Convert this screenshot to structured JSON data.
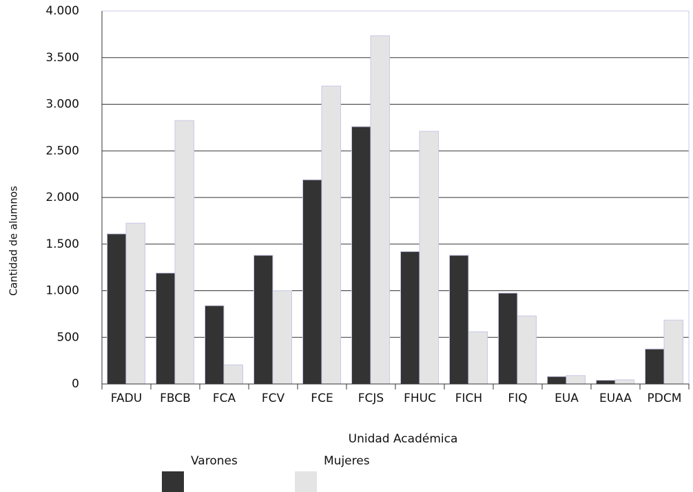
{
  "chart_data": {
    "type": "bar",
    "x_label": "Unidad Académica",
    "y_label": "Cantidad  de  alumnos",
    "categories": [
      "FADU",
      "FBCB",
      "FCA",
      "FCV",
      "FCE",
      "FCJS",
      "FHUC",
      "FICH",
      "FIQ",
      "EUA",
      "EUAA",
      "PDCM"
    ],
    "series": [
      {
        "name": "Varones",
        "color": "#333333",
        "values": [
          1610,
          1190,
          840,
          1380,
          2190,
          2760,
          1420,
          1380,
          975,
          80,
          40,
          375
        ]
      },
      {
        "name": "Mujeres",
        "color": "#e4e4e4",
        "values": [
          1725,
          2825,
          205,
          1000,
          3195,
          3735,
          2710,
          560,
          730,
          90,
          45,
          685
        ]
      }
    ],
    "ylim": [
      0,
      4000
    ],
    "yticks": [
      0,
      500,
      {
        "value": 1000,
        "label": "1.000"
      },
      {
        "value": 1500,
        "label": "1.500"
      },
      {
        "value": 2000,
        "label": "2.000"
      },
      {
        "value": 2500,
        "label": "2.500"
      },
      {
        "value": 3000,
        "label": "3.000"
      },
      {
        "value": 3500,
        "label": "3.500"
      },
      {
        "value": 4000,
        "label": "4.000"
      }
    ],
    "grid": true
  }
}
